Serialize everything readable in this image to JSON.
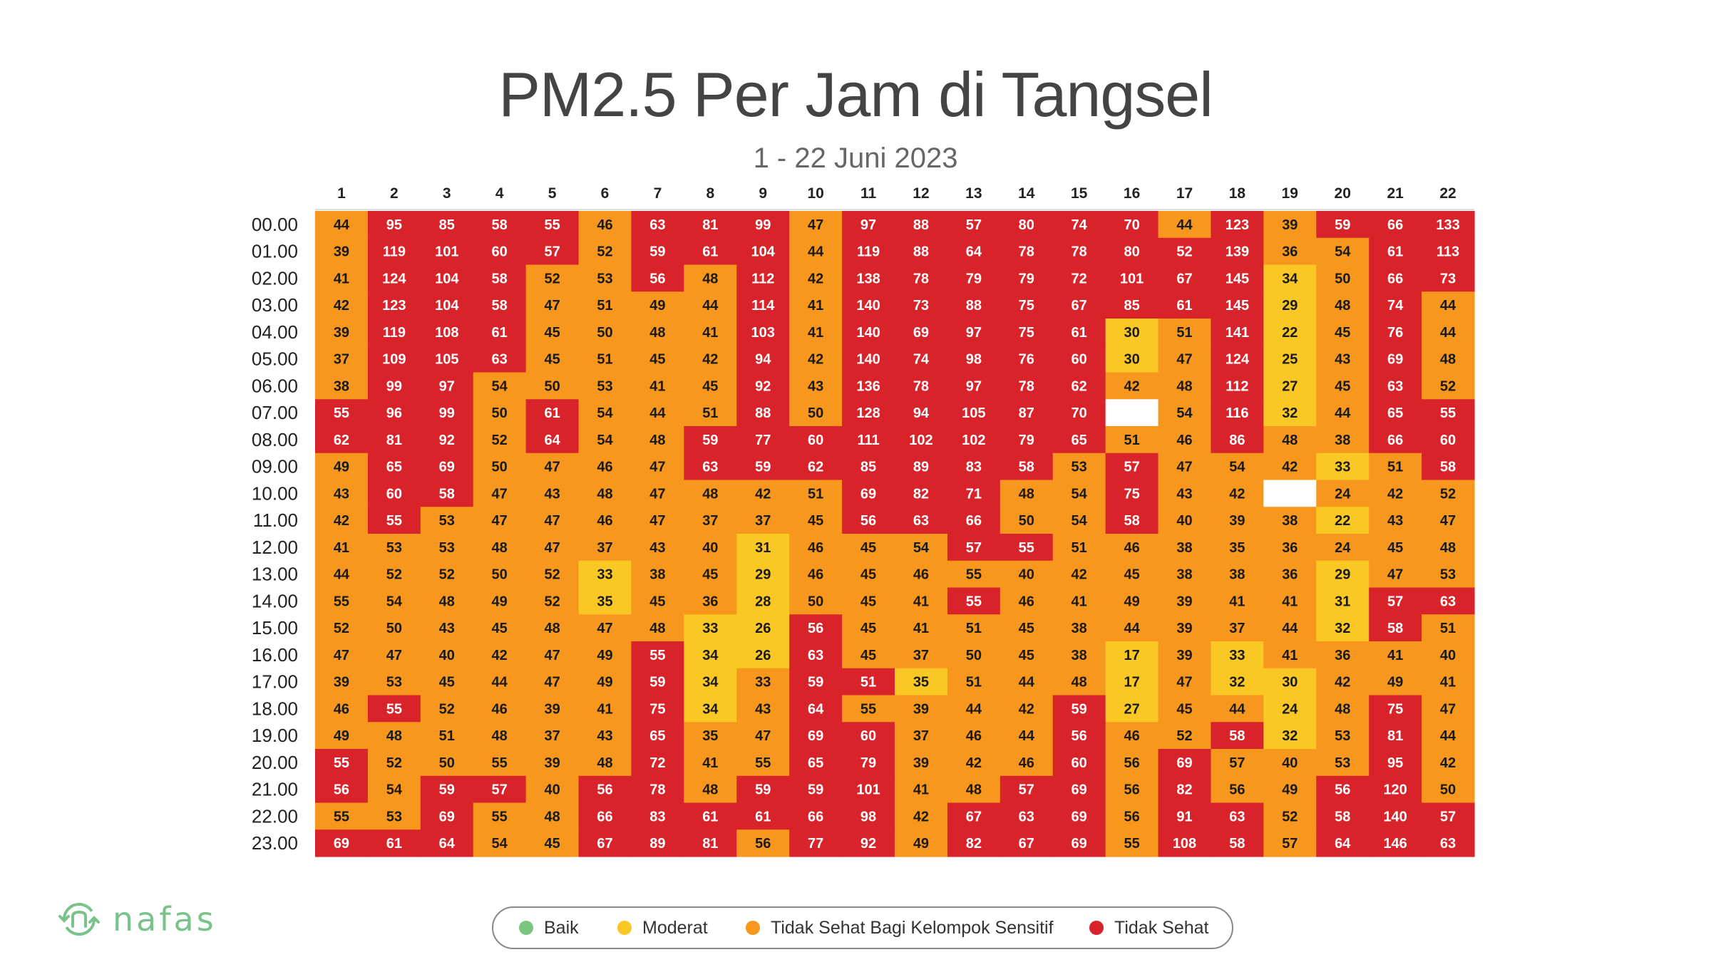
{
  "title": "PM2.5 Per Jam di Tangsel",
  "subtitle": "1 - 22 Juni 2023",
  "logo": {
    "text": "nafas",
    "icon": "nafas-logo-icon"
  },
  "colors": {
    "baik": "#7bc67e",
    "moderat": "#f9c824",
    "tidak_sehat_sensitif": "#f7971e",
    "tidak_sehat": "#d8232a",
    "missing": "#ffffff"
  },
  "legend": [
    {
      "label": "Baik",
      "color": "#7bc67e"
    },
    {
      "label": "Moderat",
      "color": "#f9c824"
    },
    {
      "label": "Tidak Sehat Bagi Kelompok Sensitif",
      "color": "#f7971e"
    },
    {
      "label": "Tidak Sehat",
      "color": "#d8232a"
    }
  ],
  "chart_data": {
    "type": "heatmap",
    "title": "PM2.5 Per Jam di Tangsel",
    "subtitle": "1 - 22 Juni 2023",
    "columns": [
      "1",
      "2",
      "3",
      "4",
      "5",
      "6",
      "7",
      "8",
      "9",
      "10",
      "11",
      "12",
      "13",
      "14",
      "15",
      "16",
      "17",
      "18",
      "19",
      "20",
      "21",
      "22"
    ],
    "rows": [
      "00.00",
      "01.00",
      "02.00",
      "03.00",
      "04.00",
      "05.00",
      "06.00",
      "07.00",
      "08.00",
      "09.00",
      "10.00",
      "11.00",
      "12.00",
      "13.00",
      "14.00",
      "15.00",
      "16.00",
      "17.00",
      "18.00",
      "19.00",
      "20.00",
      "21.00",
      "22.00",
      "23.00"
    ],
    "categories": [
      "Baik",
      "Moderat",
      "Tidak Sehat Bagi Kelompok Sensitif",
      "Tidak Sehat"
    ],
    "values": [
      [
        44,
        95,
        85,
        58,
        55,
        46,
        63,
        81,
        99,
        47,
        97,
        88,
        57,
        80,
        74,
        70,
        44,
        123,
        39,
        59,
        66,
        133
      ],
      [
        39,
        119,
        101,
        60,
        57,
        52,
        59,
        61,
        104,
        44,
        119,
        88,
        64,
        78,
        78,
        80,
        52,
        139,
        36,
        54,
        61,
        113
      ],
      [
        41,
        124,
        104,
        58,
        52,
        53,
        56,
        48,
        112,
        42,
        138,
        78,
        79,
        79,
        72,
        101,
        67,
        145,
        34,
        50,
        66,
        73
      ],
      [
        42,
        123,
        104,
        58,
        47,
        51,
        49,
        44,
        114,
        41,
        140,
        73,
        88,
        75,
        67,
        85,
        61,
        145,
        29,
        48,
        74,
        44
      ],
      [
        39,
        119,
        108,
        61,
        45,
        50,
        48,
        41,
        103,
        41,
        140,
        69,
        97,
        75,
        61,
        30,
        51,
        141,
        22,
        45,
        76,
        44
      ],
      [
        37,
        109,
        105,
        63,
        45,
        51,
        45,
        42,
        94,
        42,
        140,
        74,
        98,
        76,
        60,
        30,
        47,
        124,
        25,
        43,
        69,
        48
      ],
      [
        38,
        99,
        97,
        54,
        50,
        53,
        41,
        45,
        92,
        43,
        136,
        78,
        97,
        78,
        62,
        42,
        48,
        112,
        27,
        45,
        63,
        52
      ],
      [
        55,
        96,
        99,
        50,
        61,
        54,
        44,
        51,
        88,
        50,
        128,
        94,
        105,
        87,
        70,
        null,
        54,
        116,
        32,
        44,
        65,
        55
      ],
      [
        62,
        81,
        92,
        52,
        64,
        54,
        48,
        59,
        77,
        60,
        111,
        102,
        102,
        79,
        65,
        51,
        46,
        86,
        48,
        38,
        66,
        60
      ],
      [
        49,
        65,
        69,
        50,
        47,
        46,
        47,
        63,
        59,
        62,
        85,
        89,
        83,
        58,
        53,
        57,
        47,
        54,
        42,
        33,
        51,
        58
      ],
      [
        43,
        60,
        58,
        47,
        43,
        48,
        47,
        48,
        42,
        51,
        69,
        82,
        71,
        48,
        54,
        75,
        43,
        42,
        null,
        24,
        42,
        52
      ],
      [
        42,
        55,
        53,
        47,
        47,
        46,
        47,
        37,
        37,
        45,
        56,
        63,
        66,
        50,
        54,
        58,
        40,
        39,
        38,
        22,
        43,
        47
      ],
      [
        41,
        53,
        53,
        48,
        47,
        37,
        43,
        40,
        31,
        46,
        45,
        54,
        57,
        55,
        51,
        46,
        38,
        35,
        36,
        24,
        45,
        48
      ],
      [
        44,
        52,
        52,
        50,
        52,
        33,
        38,
        45,
        29,
        46,
        45,
        46,
        55,
        40,
        42,
        45,
        38,
        38,
        36,
        29,
        47,
        53
      ],
      [
        55,
        54,
        48,
        49,
        52,
        35,
        45,
        36,
        28,
        50,
        45,
        41,
        55,
        46,
        41,
        49,
        39,
        41,
        41,
        31,
        57,
        63
      ],
      [
        52,
        50,
        43,
        45,
        48,
        47,
        48,
        33,
        26,
        56,
        45,
        41,
        51,
        45,
        38,
        44,
        39,
        37,
        44,
        32,
        58,
        51
      ],
      [
        47,
        47,
        40,
        42,
        47,
        49,
        55,
        34,
        26,
        63,
        45,
        37,
        50,
        45,
        38,
        17,
        39,
        33,
        41,
        36,
        41,
        40
      ],
      [
        39,
        53,
        45,
        44,
        47,
        49,
        59,
        34,
        33,
        59,
        51,
        35,
        51,
        44,
        48,
        17,
        47,
        32,
        30,
        42,
        49,
        41
      ],
      [
        46,
        55,
        52,
        46,
        39,
        41,
        75,
        34,
        43,
        64,
        55,
        39,
        44,
        42,
        59,
        27,
        45,
        44,
        24,
        48,
        75,
        47
      ],
      [
        49,
        48,
        51,
        48,
        37,
        43,
        65,
        35,
        47,
        69,
        60,
        37,
        46,
        44,
        56,
        46,
        52,
        58,
        32,
        53,
        81,
        44
      ],
      [
        55,
        52,
        50,
        55,
        39,
        48,
        72,
        41,
        55,
        65,
        79,
        39,
        42,
        46,
        60,
        56,
        69,
        57,
        40,
        53,
        95,
        42
      ],
      [
        56,
        54,
        59,
        57,
        40,
        56,
        78,
        48,
        59,
        59,
        101,
        41,
        48,
        57,
        69,
        56,
        82,
        56,
        49,
        56,
        120,
        50
      ],
      [
        55,
        53,
        69,
        55,
        48,
        66,
        83,
        61,
        61,
        66,
        98,
        42,
        67,
        63,
        69,
        56,
        91,
        63,
        52,
        58,
        140,
        57
      ],
      [
        69,
        61,
        64,
        54,
        45,
        67,
        89,
        81,
        56,
        77,
        92,
        49,
        82,
        67,
        69,
        55,
        108,
        58,
        57,
        64,
        146,
        63
      ]
    ],
    "category_grid": [
      "OTTTTOTTTOTTTTTTOTOTTT",
      "OTTTTOTTTOTTTTTTTTOOTT",
      "OTTTOOTOTOTTTTTTTTYOTT",
      "OTTTOOOOTOTTTTTTTTYOTO",
      "OTTTOOOOTOTTTTTYOTYOTO",
      "OTTTOOOOTOTTTTTYOTYOTO",
      "OTTOOOOOTOTTTTTOOTYOTO",
      "TTTOTOOOTOTTTTTWOTYOTT",
      "TTTOTOOTTTTTTTTOOTOOTT",
      "OTTOOOOTTTTTTTOTOOOYOT",
      "OTTOOOOOOOTTTOOTOOWOOO",
      "OTOOOOOOOOTTTOOTOOOYOO",
      "OOOOOOOOYOOOTTOOOOOOOO",
      "OOOOOYOOYOOOOOOOOOOYOO",
      "OOOOOYOOYOOOTOOOOOOYTT",
      "OOOOOOOYYTOOOOOOOOOYTO",
      "OOOOOOTYYTOOOOOYOYOOOO",
      "OOOOOOTYOTTYOOOYOYYOOO",
      "OTOOOOTYOTOOOOTYOOYOTO",
      "OOOOOOTOOTTOOOTOOTYOTO",
      "TOOOOOTOOTTOOOTOTOOOTO",
      "TOTTOTTOTTTOOTTOTOOTTO",
      "OOTOOTTTTTTOTTTOTTOTTT",
      "TTTOOTTTOTTOTTTOTTOTTT"
    ]
  }
}
